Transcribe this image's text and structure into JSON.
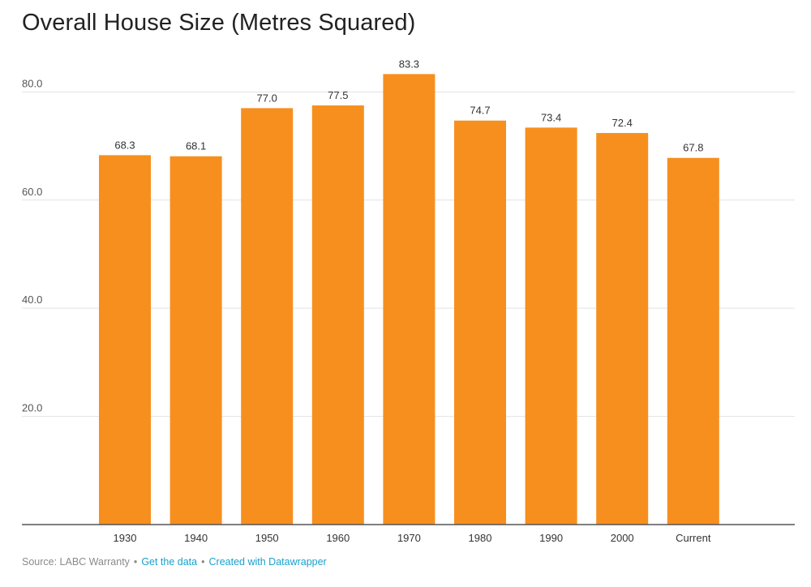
{
  "chart_data": {
    "type": "bar",
    "title": "Overall House Size (Metres Squared)",
    "categories": [
      "1930",
      "1940",
      "1950",
      "1960",
      "1970",
      "1980",
      "1990",
      "2000",
      "Current"
    ],
    "values": [
      68.3,
      68.1,
      77.0,
      77.5,
      83.3,
      74.7,
      73.4,
      72.4,
      67.8
    ],
    "value_labels": [
      "68.3",
      "68.1",
      "77.0",
      "77.5",
      "83.3",
      "74.7",
      "73.4",
      "72.4",
      "67.8"
    ],
    "yticks": [
      20,
      40,
      60,
      80
    ],
    "ytick_labels": [
      "20.0",
      "40.0",
      "60.0",
      "80.0"
    ],
    "ylim": [
      0,
      88
    ],
    "xlabel": "",
    "ylabel": "",
    "grid": true,
    "bar_color": "#f78f1e"
  },
  "footer": {
    "source": "Source: LABC Warranty",
    "sep1": "•",
    "get_data": "Get the data",
    "sep2": "•",
    "created_with": "Created with Datawrapper",
    "link_color": "#18a1cd"
  }
}
